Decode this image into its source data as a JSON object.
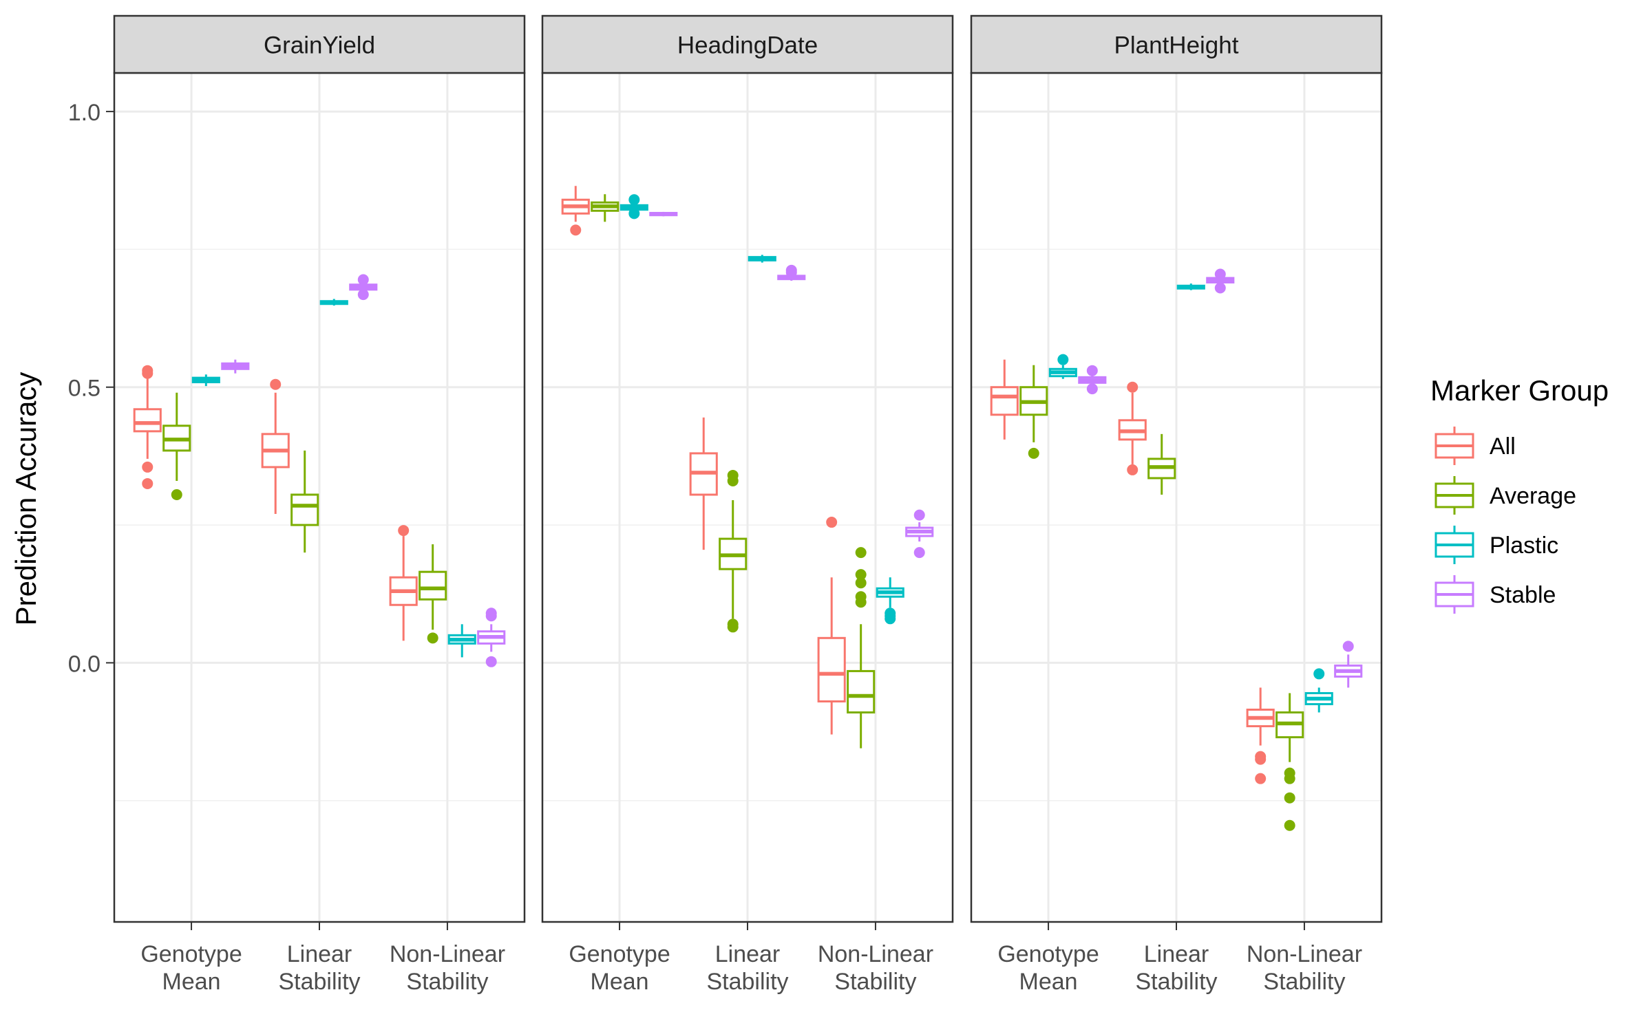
{
  "chart_data": {
    "type": "boxplot",
    "facets": [
      "GrainYield",
      "HeadingDate",
      "PlantHeight"
    ],
    "categories": [
      "Genotype\nMean",
      "Linear\nStability",
      "Non-Linear\nStability"
    ],
    "ylabel": "Prediction Accuracy",
    "xlabel": "",
    "ylim": [
      -0.47,
      1.07
    ],
    "yticks": [
      0.0,
      0.5,
      1.0
    ],
    "ytick_labels": [
      "0.0",
      "0.5",
      "1.0"
    ],
    "grid": true,
    "legend": {
      "title": "Marker Group",
      "placement": "right",
      "entries": [
        "All",
        "Average",
        "Plastic",
        "Stable"
      ]
    },
    "colors": {
      "All": "#F8766D",
      "Average": "#7CAE00",
      "Plastic": "#00BFC4",
      "Stable": "#C77CFF"
    },
    "series": [
      {
        "name": "All",
        "boxes": [
          [
            {
              "min": 0.37,
              "q1": 0.42,
              "median": 0.435,
              "q3": 0.46,
              "max": 0.52,
              "outliers": [
                0.53,
                0.525,
                0.355,
                0.325
              ]
            },
            {
              "min": 0.27,
              "q1": 0.355,
              "median": 0.385,
              "q3": 0.415,
              "max": 0.49,
              "outliers": [
                0.505
              ]
            },
            {
              "min": 0.04,
              "q1": 0.105,
              "median": 0.13,
              "q3": 0.155,
              "max": 0.23,
              "outliers": [
                0.24
              ]
            }
          ],
          [
            {
              "min": 0.8,
              "q1": 0.815,
              "median": 0.828,
              "q3": 0.84,
              "max": 0.865,
              "outliers": [
                0.785
              ]
            },
            {
              "min": 0.205,
              "q1": 0.305,
              "median": 0.345,
              "q3": 0.38,
              "max": 0.445,
              "outliers": []
            },
            {
              "min": -0.13,
              "q1": -0.07,
              "median": -0.02,
              "q3": 0.045,
              "max": 0.155,
              "outliers": [
                0.255
              ]
            }
          ],
          [
            {
              "min": 0.405,
              "q1": 0.45,
              "median": 0.483,
              "q3": 0.5,
              "max": 0.55,
              "outliers": []
            },
            {
              "min": 0.36,
              "q1": 0.405,
              "median": 0.42,
              "q3": 0.44,
              "max": 0.49,
              "outliers": [
                0.5,
                0.35
              ]
            },
            {
              "min": -0.15,
              "q1": -0.115,
              "median": -0.1,
              "q3": -0.085,
              "max": -0.045,
              "outliers": [
                -0.17,
                -0.175,
                -0.21
              ]
            }
          ]
        ]
      },
      {
        "name": "Average",
        "boxes": [
          [
            {
              "min": 0.33,
              "q1": 0.385,
              "median": 0.405,
              "q3": 0.43,
              "max": 0.49,
              "outliers": [
                0.305
              ]
            },
            {
              "min": 0.2,
              "q1": 0.25,
              "median": 0.285,
              "q3": 0.305,
              "max": 0.385,
              "outliers": []
            },
            {
              "min": 0.06,
              "q1": 0.115,
              "median": 0.135,
              "q3": 0.165,
              "max": 0.215,
              "outliers": [
                0.045
              ]
            }
          ],
          [
            {
              "min": 0.8,
              "q1": 0.82,
              "median": 0.828,
              "q3": 0.835,
              "max": 0.85,
              "outliers": []
            },
            {
              "min": 0.08,
              "q1": 0.17,
              "median": 0.195,
              "q3": 0.225,
              "max": 0.295,
              "outliers": [
                0.34,
                0.33,
                0.07,
                0.065
              ]
            },
            {
              "min": -0.155,
              "q1": -0.09,
              "median": -0.06,
              "q3": -0.015,
              "max": 0.07,
              "outliers": [
                0.2,
                0.16,
                0.145,
                0.12,
                0.11
              ]
            }
          ],
          [
            {
              "min": 0.4,
              "q1": 0.45,
              "median": 0.473,
              "q3": 0.5,
              "max": 0.54,
              "outliers": [
                0.38
              ]
            },
            {
              "min": 0.305,
              "q1": 0.335,
              "median": 0.355,
              "q3": 0.37,
              "max": 0.415,
              "outliers": []
            },
            {
              "min": -0.18,
              "q1": -0.135,
              "median": -0.11,
              "q3": -0.09,
              "max": -0.055,
              "outliers": [
                -0.2,
                -0.21,
                -0.245,
                -0.295
              ]
            }
          ]
        ]
      },
      {
        "name": "Plastic",
        "boxes": [
          [
            {
              "min": 0.502,
              "q1": 0.509,
              "median": 0.513,
              "q3": 0.517,
              "max": 0.523,
              "outliers": []
            },
            {
              "min": 0.648,
              "q1": 0.651,
              "median": 0.653,
              "q3": 0.656,
              "max": 0.66,
              "outliers": []
            },
            {
              "min": 0.01,
              "q1": 0.035,
              "median": 0.042,
              "q3": 0.05,
              "max": 0.07,
              "outliers": []
            }
          ],
          [
            {
              "min": 0.818,
              "q1": 0.822,
              "median": 0.826,
              "q3": 0.83,
              "max": 0.836,
              "outliers": [
                0.815,
                0.84
              ]
            },
            {
              "min": 0.726,
              "q1": 0.73,
              "median": 0.733,
              "q3": 0.736,
              "max": 0.74,
              "outliers": []
            },
            {
              "min": 0.1,
              "q1": 0.12,
              "median": 0.128,
              "q3": 0.135,
              "max": 0.155,
              "outliers": [
                0.09,
                0.085,
                0.08
              ]
            }
          ],
          [
            {
              "min": 0.515,
              "q1": 0.52,
              "median": 0.527,
              "q3": 0.533,
              "max": 0.54,
              "outliers": [
                0.55
              ]
            },
            {
              "min": 0.676,
              "q1": 0.679,
              "median": 0.681,
              "q3": 0.684,
              "max": 0.688,
              "outliers": []
            },
            {
              "min": -0.09,
              "q1": -0.075,
              "median": -0.065,
              "q3": -0.055,
              "max": -0.045,
              "outliers": [
                -0.02
              ]
            }
          ]
        ]
      },
      {
        "name": "Stable",
        "boxes": [
          [
            {
              "min": 0.525,
              "q1": 0.533,
              "median": 0.538,
              "q3": 0.543,
              "max": 0.55,
              "outliers": []
            },
            {
              "min": 0.67,
              "q1": 0.677,
              "median": 0.681,
              "q3": 0.686,
              "max": 0.69,
              "outliers": [
                0.695,
                0.668
              ]
            },
            {
              "min": 0.02,
              "q1": 0.035,
              "median": 0.047,
              "q3": 0.057,
              "max": 0.07,
              "outliers": [
                0.09,
                0.085,
                0.002
              ]
            }
          ],
          [
            {
              "min": 0.81,
              "q1": 0.812,
              "median": 0.814,
              "q3": 0.816,
              "max": 0.818,
              "outliers": []
            },
            {
              "min": 0.693,
              "q1": 0.696,
              "median": 0.699,
              "q3": 0.702,
              "max": 0.706,
              "outliers": [
                0.712,
                0.708
              ]
            },
            {
              "min": 0.22,
              "q1": 0.23,
              "median": 0.238,
              "q3": 0.245,
              "max": 0.255,
              "outliers": [
                0.268,
                0.2
              ]
            }
          ],
          [
            {
              "min": 0.505,
              "q1": 0.508,
              "median": 0.513,
              "q3": 0.518,
              "max": 0.525,
              "outliers": [
                0.53,
                0.497
              ]
            },
            {
              "min": 0.688,
              "q1": 0.69,
              "median": 0.694,
              "q3": 0.698,
              "max": 0.702,
              "outliers": [
                0.705,
                0.68
              ]
            },
            {
              "min": -0.045,
              "q1": -0.025,
              "median": -0.015,
              "q3": -0.005,
              "max": 0.015,
              "outliers": [
                0.03
              ]
            }
          ]
        ]
      }
    ]
  }
}
